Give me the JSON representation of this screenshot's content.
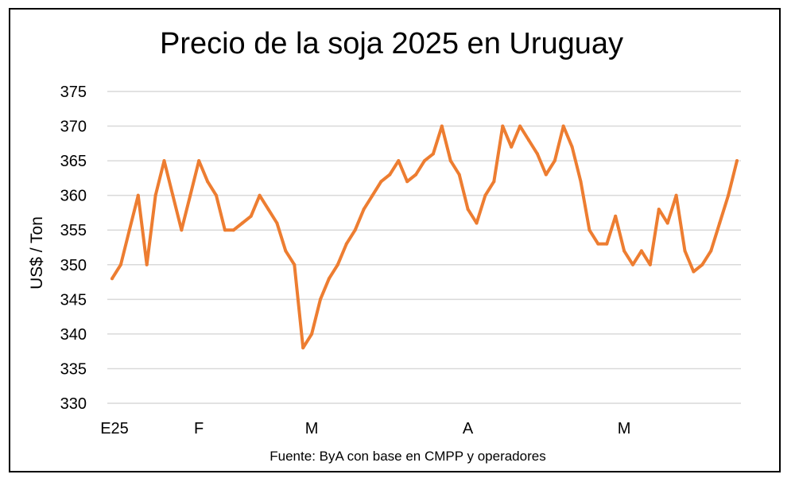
{
  "chart_data": {
    "type": "line",
    "title": "Precio de la soja 2025 en Uruguay",
    "ylabel": "US$ / Ton",
    "xlabel": "",
    "source": "Fuente: ByA con base en CMPP y operadores",
    "ylim": [
      330,
      375
    ],
    "ytick_step": 5,
    "grid": true,
    "line_color": "#ED7D31",
    "grid_color": "#D9D9D9",
    "x_ticks": [
      {
        "label": "E25",
        "index": 0
      },
      {
        "label": "F",
        "index": 10
      },
      {
        "label": "M",
        "index": 23
      },
      {
        "label": "A",
        "index": 41
      },
      {
        "label": "M",
        "index": 59
      }
    ],
    "series": [
      {
        "values": [
          348,
          350,
          355,
          360,
          350,
          360,
          365,
          360,
          355,
          360,
          365,
          362,
          360,
          355,
          355,
          356,
          357,
          360,
          358,
          356,
          352,
          350,
          338,
          340,
          345,
          348,
          350,
          353,
          355,
          358,
          360,
          362,
          363,
          365,
          362,
          363,
          365,
          366,
          370,
          365,
          363,
          358,
          356,
          360,
          362,
          370,
          367,
          370,
          368,
          366,
          363,
          365,
          370,
          367,
          362,
          355,
          353,
          353,
          357,
          352,
          350,
          352,
          350,
          358,
          356,
          360,
          352,
          349,
          350,
          352,
          356,
          360,
          365
        ]
      }
    ]
  }
}
